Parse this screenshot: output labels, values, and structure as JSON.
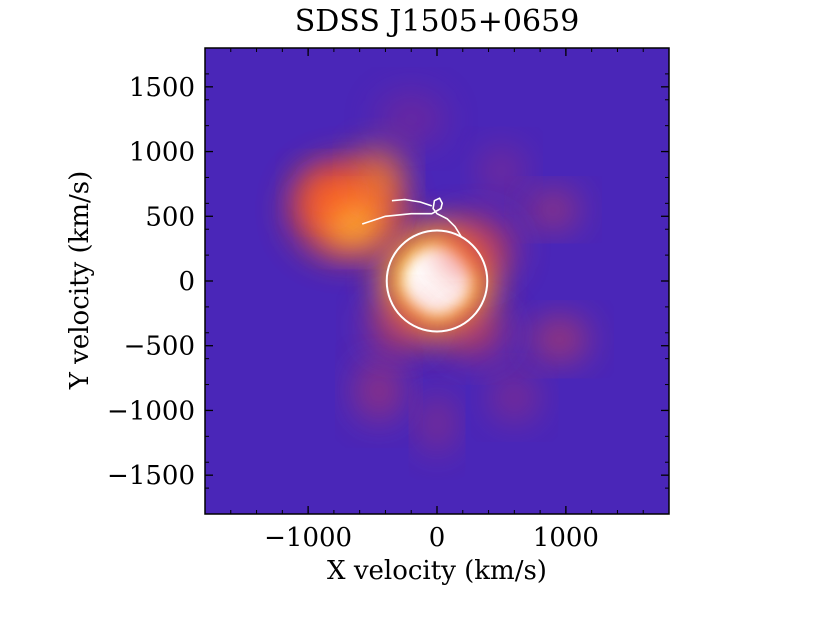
{
  "chart_data": {
    "type": "heatmap",
    "title": "SDSS J1505+0659",
    "xlabel": "X velocity (km/s)",
    "ylabel": "Y velocity (km/s)",
    "xlim": [
      -1800,
      1800
    ],
    "ylim": [
      -1800,
      1800
    ],
    "xticks": [
      -1000,
      0,
      1000
    ],
    "xtick_labels": [
      "−1000",
      "0",
      "1000"
    ],
    "yticks": [
      1500,
      1000,
      500,
      0,
      -500,
      -1000,
      -1500
    ],
    "ytick_labels": [
      "1500",
      "1000",
      "500",
      "0",
      "−500",
      "−1000",
      "−1500"
    ],
    "colormap": "plasma-like (purple → red → yellow → white)",
    "background_color": "#4a26b8",
    "blobs": [
      {
        "x": 0,
        "y": 0,
        "rx": 310,
        "ry": 310,
        "color": "#ffffff",
        "intensity": 1.0
      },
      {
        "x": -700,
        "y": 550,
        "rx": 420,
        "ry": 360,
        "color": "#ff4a1e",
        "intensity": 0.9
      },
      {
        "x": -650,
        "y": 450,
        "rx": 230,
        "ry": 180,
        "color": "#ffd03a",
        "intensity": 0.85
      },
      {
        "x": -450,
        "y": 800,
        "rx": 180,
        "ry": 230,
        "color": "#ff8a26",
        "intensity": 0.8
      },
      {
        "x": -850,
        "y": 680,
        "rx": 200,
        "ry": 170,
        "color": "#ff6a22",
        "intensity": 0.75
      },
      {
        "x": 900,
        "y": 550,
        "rx": 190,
        "ry": 130,
        "color": "#f04a30",
        "intensity": 0.55
      },
      {
        "x": 950,
        "y": -450,
        "rx": 210,
        "ry": 150,
        "color": "#f04a30",
        "intensity": 0.6
      },
      {
        "x": -450,
        "y": -850,
        "rx": 170,
        "ry": 220,
        "color": "#e8403c",
        "intensity": 0.5
      },
      {
        "x": 0,
        "y": -1100,
        "rx": 110,
        "ry": 220,
        "color": "#e03a40",
        "intensity": 0.45
      },
      {
        "x": 600,
        "y": -900,
        "rx": 170,
        "ry": 170,
        "color": "#dc3844",
        "intensity": 0.4
      },
      {
        "x": 300,
        "y": -400,
        "rx": 240,
        "ry": 200,
        "color": "#e8403c",
        "intensity": 0.55
      },
      {
        "x": -300,
        "y": -350,
        "rx": 240,
        "ry": 200,
        "color": "#e8403c",
        "intensity": 0.55
      },
      {
        "x": 500,
        "y": 850,
        "rx": 160,
        "ry": 170,
        "color": "#d8344c",
        "intensity": 0.35
      },
      {
        "x": 300,
        "y": 250,
        "rx": 300,
        "ry": 250,
        "color": "#e8403c",
        "intensity": 0.6
      },
      {
        "x": -200,
        "y": 1250,
        "rx": 260,
        "ry": 200,
        "color": "#a82a70",
        "intensity": 0.35
      }
    ],
    "overlay_circle": {
      "x": 0,
      "y": 0,
      "radius": 390,
      "color": "#ffffff"
    },
    "trajectory": {
      "color": "#ffffff",
      "points": [
        [
          -580,
          440
        ],
        [
          -400,
          500
        ],
        [
          -200,
          520
        ],
        [
          -40,
          520
        ],
        [
          30,
          560
        ],
        [
          40,
          600
        ],
        [
          20,
          640
        ],
        [
          -20,
          620
        ],
        [
          -30,
          560
        ],
        [
          0,
          520
        ],
        [
          80,
          480
        ],
        [
          140,
          420
        ],
        [
          190,
          340
        ]
      ]
    },
    "trajectory_tail": {
      "points": [
        [
          -350,
          620
        ],
        [
          -250,
          630
        ],
        [
          -130,
          610
        ],
        [
          -40,
          580
        ]
      ]
    },
    "grid": false,
    "legend": "none"
  }
}
